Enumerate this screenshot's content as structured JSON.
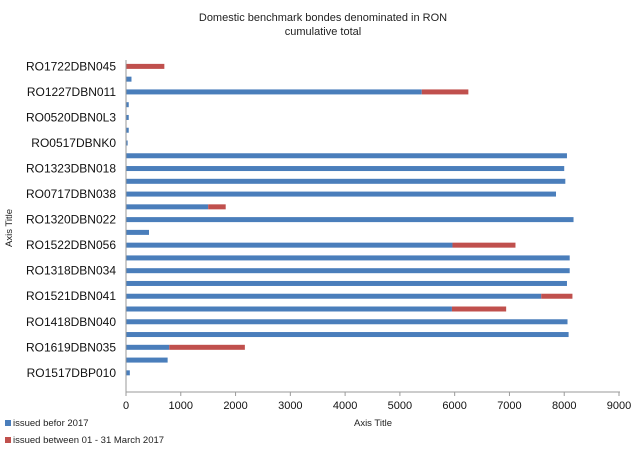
{
  "chart_data": {
    "type": "bar",
    "orientation": "horizontal",
    "stacked": true,
    "title": "Domestic benchmark bondes denominated in RON",
    "subtitle": "cumulative total",
    "xlabel": "Axis Title",
    "ylabel": "Axis Title",
    "xlim": [
      0,
      9000
    ],
    "x_ticks": [
      0,
      1000,
      2000,
      3000,
      4000,
      5000,
      6000,
      7000,
      8000,
      9000
    ],
    "grid": false,
    "legend_position": "bottom-left",
    "category_labels_shown": [
      "RO1722DBN045",
      "RO1227DBN011",
      "RO0520DBN0L3",
      "RO0517DBNK0",
      "RO1323DBN018",
      "RO0717DBN038",
      "RO1320DBN022",
      "RO1522DBN056",
      "RO1318DBN034",
      "RO1521DBN041",
      "RO1418DBN040",
      "RO1619DBN035",
      "RO1517DBP010"
    ],
    "bar_count": 26,
    "series": [
      {
        "name": "issued befor 2017",
        "color": "#4a7ebb",
        "values": [
          0,
          100,
          5400,
          50,
          50,
          50,
          30,
          8050,
          8000,
          8020,
          7850,
          1500,
          8170,
          420,
          5960,
          8100,
          8100,
          8050,
          7580,
          5950,
          8060,
          8080,
          790,
          760,
          70,
          0
        ]
      },
      {
        "name": "issued between 01 - 31 March 2017",
        "color": "#c0504d",
        "values": [
          700,
          0,
          850,
          0,
          0,
          0,
          0,
          0,
          0,
          0,
          0,
          320,
          0,
          0,
          1150,
          0,
          0,
          0,
          570,
          990,
          0,
          0,
          1380,
          0,
          0,
          0
        ]
      }
    ]
  }
}
